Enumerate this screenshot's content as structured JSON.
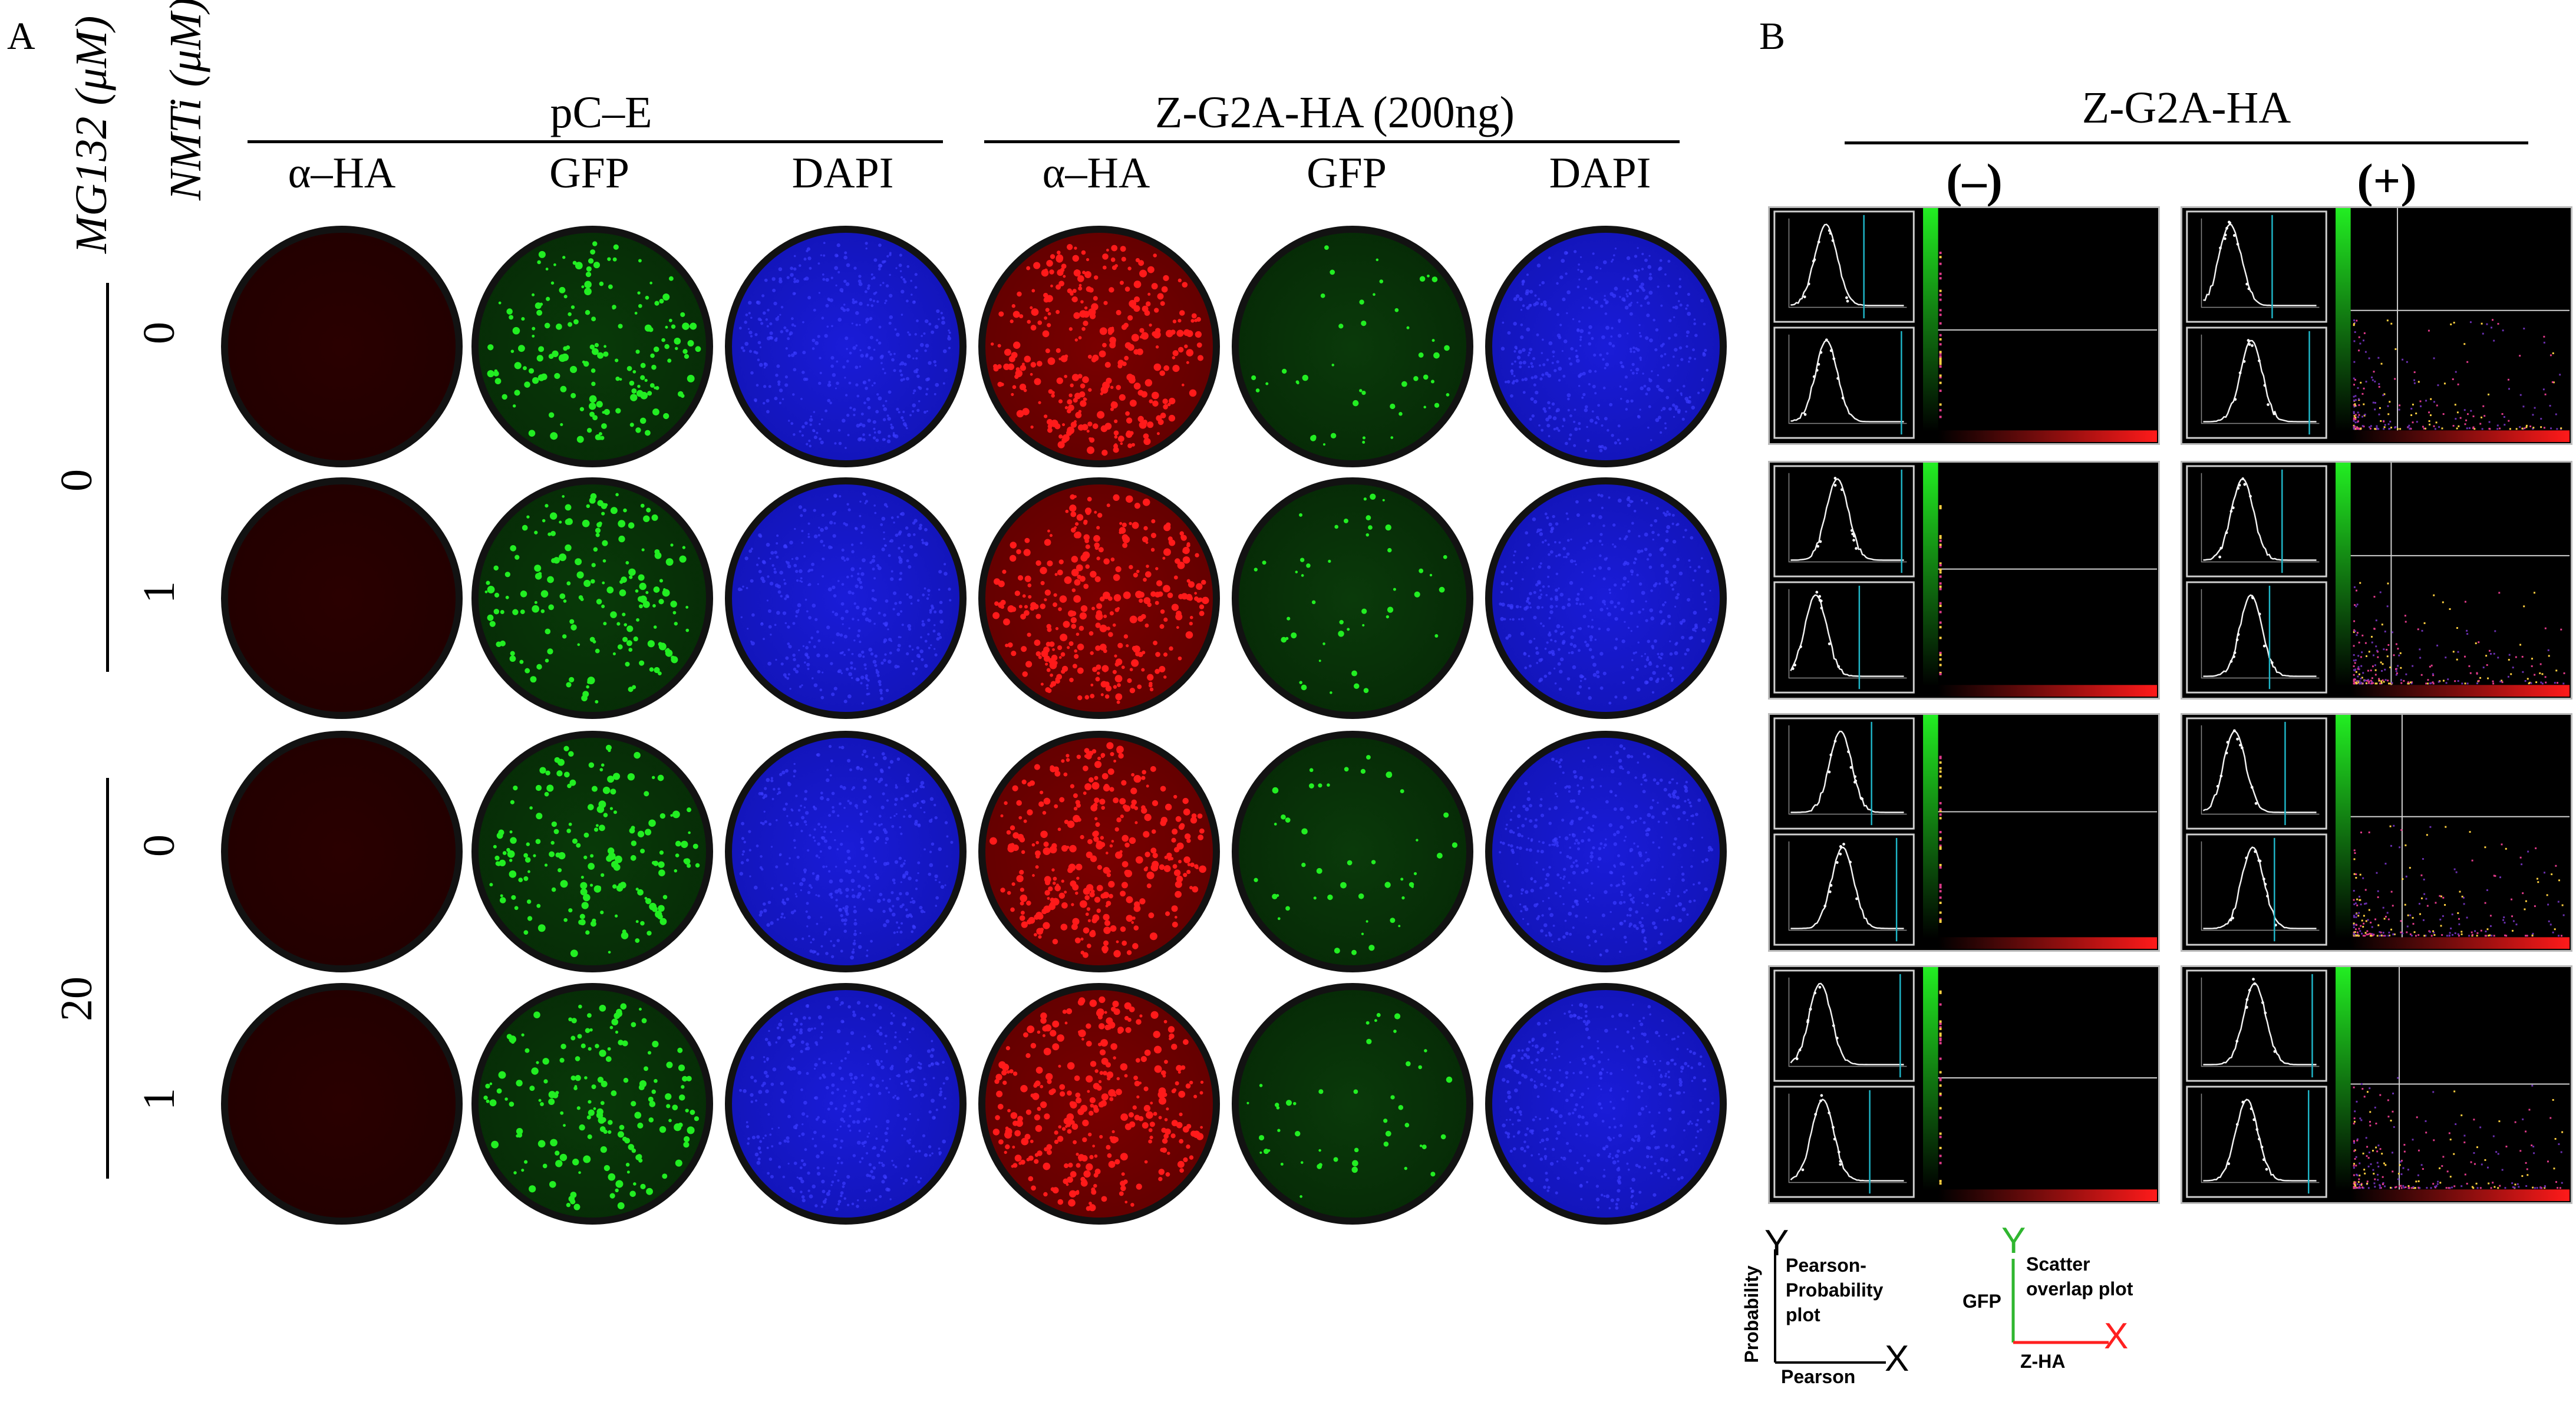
{
  "panel_a": {
    "letter": "A",
    "axis_labels": {
      "mg132": "MG132 (μM)",
      "nmti": "NMTi (μM)"
    },
    "mg132_values": [
      "0",
      "20"
    ],
    "nmti_values": [
      "0",
      "1",
      "0",
      "1"
    ],
    "groups": [
      {
        "title": "pC–E",
        "columns": [
          "α–HA",
          "GFP",
          "DAPI"
        ],
        "channels": [
          "red",
          "green",
          "blue"
        ]
      },
      {
        "title": "Z-G2A-HA (200ng)",
        "columns": [
          "α–HA",
          "GFP",
          "DAPI"
        ],
        "channels": [
          "hared",
          "dimgreen",
          "blue"
        ]
      }
    ]
  },
  "panel_b": {
    "letter": "B",
    "title": "Z-G2A-HA",
    "conditions": [
      "(–)",
      "(+)"
    ],
    "legend": {
      "pearson": {
        "y_letter": "Y",
        "x_letter": "X",
        "y_label": "Probability",
        "x_label": "Pearson",
        "caption": "Pearson-\nProbability\nplot"
      },
      "scatter": {
        "y_letter": "Y",
        "x_letter": "X",
        "y_label": "GFP",
        "x_label": "Z-HA",
        "caption": "Scatter\noverlap plot"
      }
    }
  },
  "colors": {
    "ha_red": "#ff1a1a",
    "gfp_green": "#22ee22",
    "dapi_blue": "#1a1cd8",
    "legend_y_green": "#2fb62f",
    "legend_x_red": "#ff2020"
  }
}
